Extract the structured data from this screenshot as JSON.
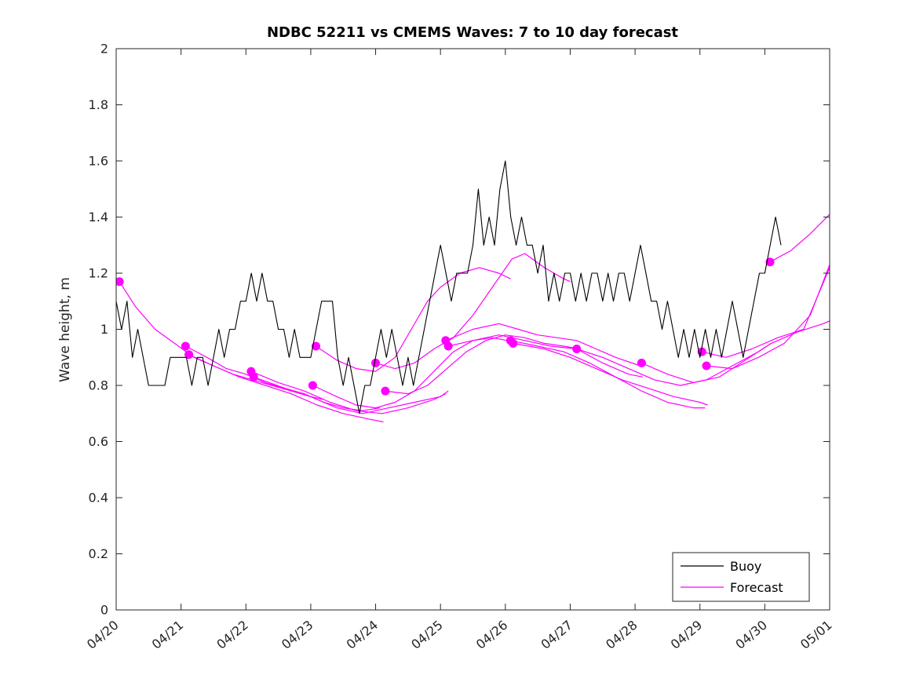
{
  "window": {
    "title": "NDBC 52211 vs CMEMS Waves: 7 to 10 day forecast"
  },
  "chart_data": {
    "type": "line",
    "title": "NDBC 52211 vs CMEMS Waves: 7 to 10 day forecast",
    "xlabel": "",
    "ylabel": "Wave height, m",
    "ylim": [
      0,
      2
    ],
    "ytick_values": [
      0,
      0.2,
      0.4,
      0.6,
      0.8,
      1,
      1.2,
      1.4,
      1.6,
      1.8,
      2
    ],
    "ytick_labels": [
      "0",
      "0.2",
      "0.4",
      "0.6",
      "0.8",
      "1",
      "1.2",
      "1.4",
      "1.6",
      "1.8",
      "2"
    ],
    "xlim_days": [
      0,
      11
    ],
    "xtick_days": [
      0,
      1,
      2,
      3,
      4,
      5,
      6,
      7,
      8,
      9,
      10,
      11
    ],
    "xtick_labels": [
      "04/20",
      "04/21",
      "04/22",
      "04/23",
      "04/24",
      "04/25",
      "04/26",
      "04/27",
      "04/28",
      "04/29",
      "04/30",
      "05/01"
    ],
    "grid": false,
    "colors": {
      "buoy": "#000000",
      "forecast": "#FF00FF",
      "axis": "#262626",
      "background": "#FFFFFF"
    },
    "legend": {
      "position": "southeast",
      "entries": [
        {
          "label": "Buoy",
          "color": "#000000"
        },
        {
          "label": "Forecast",
          "color": "#FF00FF"
        }
      ]
    },
    "series": [
      {
        "name": "Buoy",
        "type": "observed",
        "start_day": 0,
        "step_days": 0.083333,
        "values": [
          1.1,
          1.0,
          1.1,
          0.9,
          1.0,
          0.9,
          0.8,
          0.8,
          0.8,
          0.8,
          0.9,
          0.9,
          0.9,
          0.9,
          0.8,
          0.9,
          0.9,
          0.8,
          0.9,
          1.0,
          0.9,
          1.0,
          1.0,
          1.1,
          1.1,
          1.2,
          1.1,
          1.2,
          1.1,
          1.1,
          1.0,
          1.0,
          0.9,
          1.0,
          0.9,
          0.9,
          0.9,
          1.0,
          1.1,
          1.1,
          1.1,
          0.9,
          0.8,
          0.9,
          0.8,
          0.7,
          0.8,
          0.8,
          0.9,
          1.0,
          0.9,
          1.0,
          0.9,
          0.8,
          0.9,
          0.8,
          0.9,
          1.0,
          1.1,
          1.2,
          1.3,
          1.2,
          1.1,
          1.2,
          1.2,
          1.2,
          1.3,
          1.5,
          1.3,
          1.4,
          1.3,
          1.5,
          1.6,
          1.4,
          1.3,
          1.4,
          1.3,
          1.3,
          1.2,
          1.3,
          1.1,
          1.2,
          1.1,
          1.2,
          1.2,
          1.1,
          1.2,
          1.1,
          1.2,
          1.2,
          1.1,
          1.2,
          1.1,
          1.2,
          1.2,
          1.1,
          1.2,
          1.3,
          1.2,
          1.1,
          1.1,
          1.0,
          1.1,
          1.0,
          0.9,
          1.0,
          0.9,
          1.0,
          0.9,
          1.0,
          0.9,
          1.0,
          0.9,
          1.0,
          1.1,
          1.0,
          0.9,
          1.0,
          1.1,
          1.2,
          1.2,
          1.3,
          1.4,
          1.3
        ]
      }
    ],
    "forecasts": [
      {
        "x": [
          0.05,
          0.3,
          0.6,
          0.9,
          1.2,
          1.5,
          1.8,
          2.1,
          2.4,
          2.7,
          3.0,
          3.2
        ],
        "y": [
          1.17,
          1.08,
          1.0,
          0.95,
          0.9,
          0.87,
          0.84,
          0.82,
          0.8,
          0.78,
          0.76,
          0.75
        ]
      },
      {
        "x": [
          1.07,
          1.4,
          1.7,
          2.0,
          2.3,
          2.6,
          2.9,
          3.2,
          3.5,
          3.8,
          4.07
        ],
        "y": [
          0.94,
          0.9,
          0.86,
          0.84,
          0.81,
          0.79,
          0.77,
          0.74,
          0.72,
          0.71,
          0.72
        ]
      },
      {
        "x": [
          1.12,
          1.5,
          1.9,
          2.3,
          2.7,
          3.1,
          3.5,
          3.9,
          4.12
        ],
        "y": [
          0.91,
          0.87,
          0.83,
          0.8,
          0.77,
          0.73,
          0.7,
          0.68,
          0.67
        ]
      },
      {
        "x": [
          2.08,
          2.5,
          2.9,
          3.3,
          3.7,
          4.1,
          4.5,
          4.9,
          5.08
        ],
        "y": [
          0.85,
          0.81,
          0.78,
          0.74,
          0.71,
          0.7,
          0.72,
          0.75,
          0.77
        ]
      },
      {
        "x": [
          2.12,
          2.6,
          3.0,
          3.4,
          3.8,
          4.2,
          4.6,
          5.0,
          5.12
        ],
        "y": [
          0.83,
          0.79,
          0.76,
          0.72,
          0.7,
          0.72,
          0.74,
          0.76,
          0.78
        ]
      },
      {
        "x": [
          3.08,
          3.4,
          3.7,
          4.0,
          4.3,
          4.55,
          4.8,
          5.0,
          5.3,
          5.6,
          5.9,
          6.08
        ],
        "y": [
          0.94,
          0.89,
          0.86,
          0.85,
          0.9,
          1.0,
          1.1,
          1.15,
          1.2,
          1.22,
          1.2,
          1.18
        ]
      },
      {
        "x": [
          3.03,
          3.4,
          3.7,
          4.0,
          4.3,
          4.6,
          4.9,
          5.2,
          5.5,
          5.8,
          6.03
        ],
        "y": [
          0.8,
          0.76,
          0.73,
          0.72,
          0.74,
          0.78,
          0.85,
          0.92,
          0.96,
          0.97,
          0.96
        ]
      },
      {
        "x": [
          4.0,
          4.3,
          4.6,
          4.9,
          5.2,
          5.5,
          5.8,
          6.1,
          6.3,
          6.6,
          6.9,
          7.0
        ],
        "y": [
          0.88,
          0.86,
          0.88,
          0.93,
          0.97,
          1.05,
          1.15,
          1.25,
          1.27,
          1.22,
          1.18,
          1.17
        ]
      },
      {
        "x": [
          4.15,
          4.5,
          4.8,
          5.1,
          5.4,
          5.7,
          6.0,
          6.3,
          6.6,
          6.9,
          7.15
        ],
        "y": [
          0.78,
          0.77,
          0.8,
          0.86,
          0.92,
          0.96,
          0.98,
          0.97,
          0.95,
          0.94,
          0.93
        ]
      },
      {
        "x": [
          5.08,
          5.5,
          5.9,
          6.2,
          6.5,
          6.8,
          7.1,
          7.4,
          7.7,
          8.08
        ],
        "y": [
          0.96,
          1.0,
          1.02,
          1.0,
          0.98,
          0.97,
          0.96,
          0.93,
          0.9,
          0.87
        ]
      },
      {
        "x": [
          5.12,
          5.5,
          5.9,
          6.3,
          6.7,
          7.1,
          7.5,
          7.9,
          8.12
        ],
        "y": [
          0.94,
          0.96,
          0.98,
          0.96,
          0.94,
          0.93,
          0.88,
          0.84,
          0.83
        ]
      },
      {
        "x": [
          6.08,
          6.5,
          6.9,
          7.3,
          7.7,
          8.1,
          8.5,
          8.9,
          9.08
        ],
        "y": [
          0.96,
          0.94,
          0.92,
          0.88,
          0.83,
          0.78,
          0.74,
          0.72,
          0.72
        ]
      },
      {
        "x": [
          6.12,
          6.6,
          7.0,
          7.4,
          7.8,
          8.2,
          8.6,
          9.0,
          9.12
        ],
        "y": [
          0.95,
          0.93,
          0.9,
          0.86,
          0.82,
          0.79,
          0.76,
          0.74,
          0.73
        ]
      },
      {
        "x": [
          7.1,
          7.5,
          7.9,
          8.3,
          8.7,
          9.1,
          9.5,
          9.9,
          10.1
        ],
        "y": [
          0.93,
          0.9,
          0.86,
          0.82,
          0.8,
          0.82,
          0.87,
          0.92,
          0.95
        ]
      },
      {
        "x": [
          8.1,
          8.5,
          8.9,
          9.3,
          9.7,
          10.1,
          10.5,
          10.9,
          11.0
        ],
        "y": [
          0.88,
          0.84,
          0.81,
          0.83,
          0.89,
          0.95,
          0.99,
          1.02,
          1.03
        ]
      },
      {
        "x": [
          9.03,
          9.4,
          9.8,
          10.2,
          10.6,
          11.0
        ],
        "y": [
          0.92,
          0.9,
          0.93,
          0.97,
          1.0,
          1.22
        ]
      },
      {
        "x": [
          9.1,
          9.5,
          9.9,
          10.3,
          10.7,
          11.0
        ],
        "y": [
          0.87,
          0.86,
          0.9,
          0.95,
          1.05,
          1.23
        ]
      },
      {
        "x": [
          10.08,
          10.4,
          10.7,
          11.0
        ],
        "y": [
          1.24,
          1.28,
          1.34,
          1.41
        ]
      }
    ]
  }
}
